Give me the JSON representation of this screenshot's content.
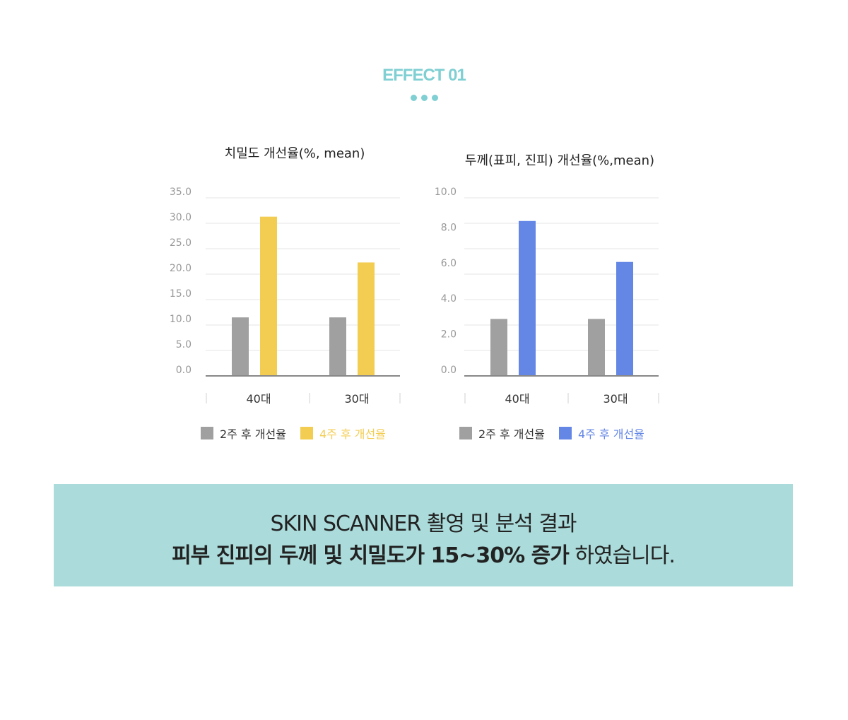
{
  "header": {
    "title": "EFFECT 01",
    "accent_color": "#7fcfd3",
    "dot_count": 3
  },
  "colors": {
    "gray": "#a0a0a0",
    "yellow": "#f3cd52",
    "blue": "#6487e6",
    "grid": "#e6e6e6",
    "axis": "#888888",
    "tick_text": "#999999",
    "banner_bg": "#abdcdb"
  },
  "chart_data": [
    {
      "type": "bar",
      "title": "치밀도 개선율(%, mean)",
      "categories": [
        "40대",
        "30대"
      ],
      "series": [
        {
          "name": "2주 후 개선율",
          "values": [
            11.5,
            11.5
          ],
          "color": "#a0a0a0"
        },
        {
          "name": "4주 후 개선율",
          "values": [
            31.3,
            22.3
          ],
          "color": "#f3cd52"
        }
      ],
      "ylim": [
        0,
        35
      ],
      "yticks": [
        "0.0",
        "5.0",
        "10.0",
        "15.0",
        "20.0",
        "25.0",
        "30.0",
        "35.0"
      ],
      "grid": true,
      "legend_position": "bottom"
    },
    {
      "type": "bar",
      "title": "두께(표피, 진피) 개선율(%,mean)",
      "categories": [
        "40대",
        "30대"
      ],
      "series": [
        {
          "name": "2주 후 개선율",
          "values": [
            3.2,
            3.2
          ],
          "color": "#a0a0a0"
        },
        {
          "name": "4주 후 개선율",
          "values": [
            8.7,
            6.4
          ],
          "color": "#6487e6"
        }
      ],
      "ylim": [
        0,
        10
      ],
      "yticks": [
        "0.0",
        "2.0",
        "4.0",
        "6.0",
        "8.0",
        "10.0"
      ],
      "grid": true,
      "legend_position": "bottom"
    }
  ],
  "banner": {
    "line1": "SKIN SCANNER 촬영 및 분석 결과",
    "line2_bold": "피부 진피의 두께 및 치밀도가 15~30% 증가",
    "line2_rest": " 하였습니다."
  }
}
